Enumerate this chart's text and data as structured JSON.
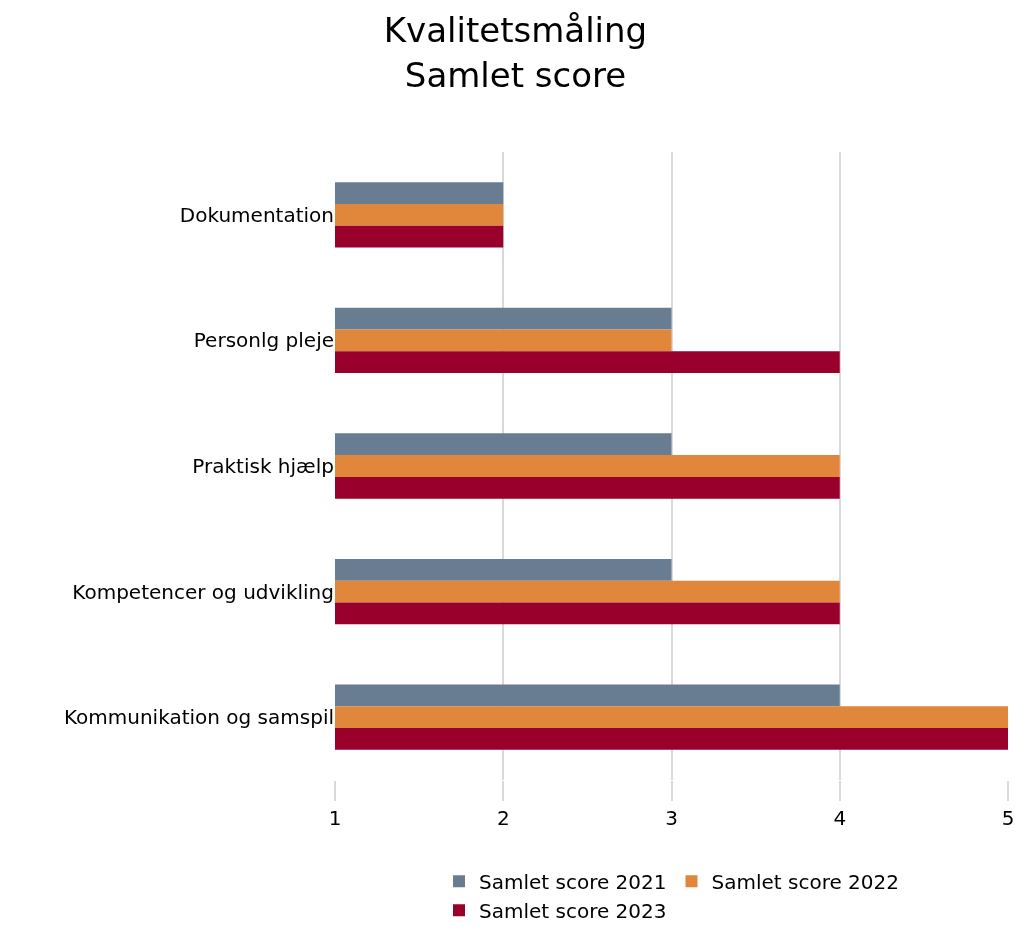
{
  "chart_data": {
    "type": "bar",
    "orientation": "horizontal",
    "title": "Kvalitetsmåling\nSamlet score",
    "categories": [
      "Dokumentation",
      "Personlg pleje",
      "Praktisk hjælp",
      "Kompetencer og udvikling",
      "Kommunikation og samspil"
    ],
    "series": [
      {
        "name": "Samlet score 2021",
        "color": "#687d91",
        "values": [
          2,
          3,
          3,
          3,
          4
        ]
      },
      {
        "name": "Samlet score 2022",
        "color": "#e0873b",
        "values": [
          2,
          3,
          4,
          4,
          5
        ]
      },
      {
        "name": "Samlet score 2023",
        "color": "#99002b",
        "values": [
          2,
          4,
          4,
          4,
          5
        ]
      }
    ],
    "xlim": [
      1,
      5
    ],
    "xticks": [
      1,
      2,
      3,
      4,
      5
    ],
    "grid": "x",
    "legend": "bottom"
  }
}
